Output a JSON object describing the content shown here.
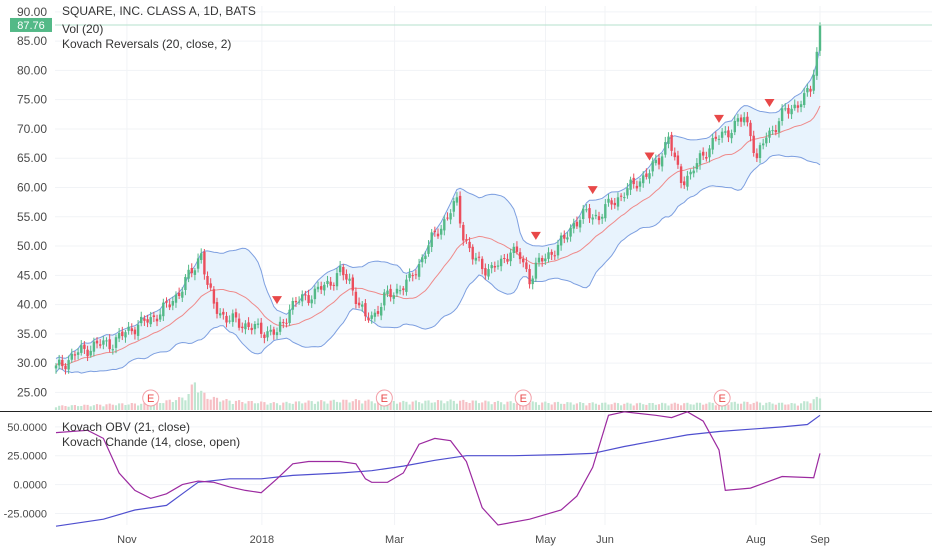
{
  "legend": {
    "title": "SQUARE, INC. CLASS A, 1D, BATS",
    "vol": "Vol (20)",
    "reversals": "Kovach Reversals (20, close, 2)",
    "obv": "Kovach OBV (21, close)",
    "chande": "Kovach Chande (14, close, open)"
  },
  "price_badge": "87.76",
  "colors": {
    "up": "#53b987",
    "down": "#eb4d5c",
    "band": "#7d9fe0",
    "band_fill": "#e8f3fd",
    "ma": "#ef8a8a",
    "obv": "#4f4fcf",
    "chande": "#9c2aa0",
    "marker": "#e84848",
    "badge": "#53b987"
  },
  "chart_data": [
    {
      "type": "candlestick",
      "title": "SQUARE, INC. CLASS A, 1D, BATS",
      "ylim": [
        22,
        91
      ],
      "y_ticks": [
        "90.00",
        "85.00",
        "80.00",
        "75.00",
        "70.00",
        "65.00",
        "60.00",
        "55.00",
        "50.00",
        "45.00",
        "40.00",
        "35.00",
        "30.00",
        "25.00"
      ],
      "x_ticks": [
        "Nov",
        "2018",
        "Mar",
        "May",
        "Jun",
        "Aug",
        "Sep"
      ],
      "close_path": [
        [
          0,
          29
        ],
        [
          6,
          31.5
        ],
        [
          12,
          33
        ],
        [
          18,
          33.5
        ],
        [
          24,
          36
        ],
        [
          30,
          37.5
        ],
        [
          36,
          40
        ],
        [
          40,
          43
        ],
        [
          44,
          46.5
        ],
        [
          46,
          49
        ],
        [
          48,
          43
        ],
        [
          50,
          40
        ],
        [
          54,
          37.5
        ],
        [
          58,
          37
        ],
        [
          62,
          36
        ],
        [
          66,
          35.5
        ],
        [
          70,
          35
        ],
        [
          72,
          37
        ],
        [
          74,
          39.5
        ],
        [
          78,
          41
        ],
        [
          82,
          42
        ],
        [
          86,
          43.5
        ],
        [
          90,
          45.5
        ],
        [
          93,
          44
        ],
        [
          96,
          40
        ],
        [
          98,
          37.5
        ],
        [
          101,
          38.5
        ],
        [
          104,
          41
        ],
        [
          108,
          42.5
        ],
        [
          112,
          44
        ],
        [
          116,
          48
        ],
        [
          120,
          52
        ],
        [
          124,
          55
        ],
        [
          127,
          57.5
        ],
        [
          129,
          52
        ],
        [
          132,
          48
        ],
        [
          135,
          46.5
        ],
        [
          138,
          46
        ],
        [
          141,
          47
        ],
        [
          144,
          49.5
        ],
        [
          147,
          48
        ],
        [
          150,
          44.5
        ],
        [
          152,
          46.5
        ],
        [
          155,
          48
        ],
        [
          158,
          49.5
        ],
        [
          161,
          51
        ],
        [
          164,
          54
        ],
        [
          168,
          55.5
        ],
        [
          172,
          55
        ],
        [
          176,
          57.5
        ],
        [
          180,
          59
        ],
        [
          184,
          61
        ],
        [
          188,
          62.5
        ],
        [
          191,
          65
        ],
        [
          194,
          68.5
        ],
        [
          196,
          64.5
        ],
        [
          198,
          61.5
        ],
        [
          201,
          62
        ],
        [
          204,
          65
        ],
        [
          207,
          67
        ],
        [
          211,
          69
        ],
        [
          215,
          70.5
        ],
        [
          218,
          72
        ],
        [
          220,
          69.5
        ],
        [
          222,
          64.5
        ],
        [
          225,
          69
        ],
        [
          228,
          70.5
        ],
        [
          231,
          73
        ],
        [
          234,
          74
        ],
        [
          237,
          75
        ],
        [
          239,
          77
        ],
        [
          240,
          80
        ],
        [
          241,
          83
        ],
        [
          242,
          87.76
        ]
      ],
      "volume_ylim": [
        0,
        10
      ],
      "volume_path": [
        [
          0,
          1
        ],
        [
          10,
          1.2
        ],
        [
          20,
          1.5
        ],
        [
          30,
          1.6
        ],
        [
          35,
          2.2
        ],
        [
          40,
          3
        ],
        [
          42,
          4
        ],
        [
          44,
          7.2
        ],
        [
          46,
          4.5
        ],
        [
          48,
          3.2
        ],
        [
          55,
          2.3
        ],
        [
          70,
          1.7
        ],
        [
          80,
          2.1
        ],
        [
          95,
          2.4
        ],
        [
          110,
          2
        ],
        [
          125,
          2.3
        ],
        [
          140,
          2
        ],
        [
          160,
          1.8
        ],
        [
          180,
          1.6
        ],
        [
          200,
          1.6
        ],
        [
          220,
          1.9
        ],
        [
          235,
          1.5
        ],
        [
          240,
          2.6
        ],
        [
          242,
          3.2
        ]
      ],
      "earnings": [
        "E",
        "E",
        "E",
        "E"
      ],
      "earnings_x": [
        30,
        104,
        148,
        211
      ],
      "reversal_x": [
        70,
        152,
        170,
        188,
        210,
        226
      ]
    },
    {
      "type": "line",
      "ylim": [
        -35,
        62
      ],
      "y_ticks": [
        "50.0000",
        "25.0000",
        "0.0000",
        "-25.0000"
      ],
      "series": [
        {
          "name": "Kovach OBV (21, close)",
          "points": [
            [
              0,
              -36
            ],
            [
              15,
              -30
            ],
            [
              25,
              -22
            ],
            [
              35,
              -18
            ],
            [
              40,
              -8
            ],
            [
              45,
              2
            ],
            [
              55,
              5
            ],
            [
              65,
              5
            ],
            [
              75,
              8
            ],
            [
              90,
              10
            ],
            [
              100,
              12
            ],
            [
              110,
              16
            ],
            [
              120,
              21
            ],
            [
              130,
              25
            ],
            [
              145,
              25
            ],
            [
              160,
              26
            ],
            [
              170,
              27
            ],
            [
              180,
              33
            ],
            [
              190,
              38
            ],
            [
              200,
              43
            ],
            [
              210,
              46
            ],
            [
              220,
              48
            ],
            [
              230,
              50
            ],
            [
              238,
              52
            ],
            [
              242,
              60
            ]
          ]
        },
        {
          "name": "Kovach Chande (14, close, open)",
          "points": [
            [
              0,
              45
            ],
            [
              10,
              47
            ],
            [
              15,
              40
            ],
            [
              20,
              10
            ],
            [
              25,
              -5
            ],
            [
              30,
              -12
            ],
            [
              35,
              -8
            ],
            [
              40,
              0
            ],
            [
              45,
              3
            ],
            [
              50,
              2
            ],
            [
              55,
              -2
            ],
            [
              60,
              -5
            ],
            [
              65,
              -7
            ],
            [
              70,
              5
            ],
            [
              75,
              18
            ],
            [
              80,
              20
            ],
            [
              90,
              20
            ],
            [
              95,
              18
            ],
            [
              98,
              5
            ],
            [
              100,
              2
            ],
            [
              105,
              2
            ],
            [
              110,
              10
            ],
            [
              115,
              35
            ],
            [
              120,
              40
            ],
            [
              125,
              38
            ],
            [
              130,
              20
            ],
            [
              135,
              -20
            ],
            [
              140,
              -35
            ],
            [
              150,
              -30
            ],
            [
              160,
              -22
            ],
            [
              165,
              -10
            ],
            [
              170,
              15
            ],
            [
              175,
              60
            ],
            [
              180,
              63
            ],
            [
              190,
              60
            ],
            [
              195,
              58
            ],
            [
              200,
              63
            ],
            [
              205,
              55
            ],
            [
              210,
              30
            ],
            [
              212,
              -5
            ],
            [
              220,
              -3
            ],
            [
              225,
              2
            ],
            [
              230,
              7
            ],
            [
              240,
              6
            ],
            [
              242,
              27
            ]
          ]
        }
      ]
    }
  ]
}
